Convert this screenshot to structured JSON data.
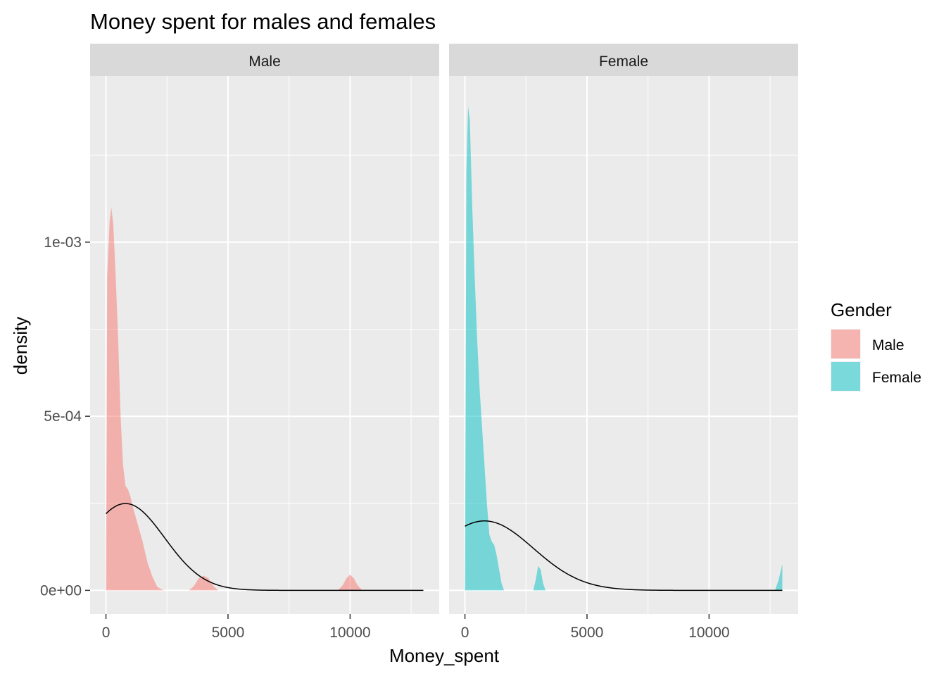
{
  "chart_data": {
    "type": "area",
    "title": "Money spent for males and females",
    "xlabel": "Money_spent",
    "ylabel": "density",
    "xlim": [
      -650,
      13650
    ],
    "ylim": [
      -6.8e-05,
      0.001477
    ],
    "x_ticks": [
      0,
      5000,
      10000
    ],
    "x_tick_labels": [
      "0",
      "5000",
      "10000"
    ],
    "y_ticks": [
      0,
      0.0005,
      0.001
    ],
    "y_tick_labels": [
      "0e+00",
      "5e-04",
      "1e-03"
    ],
    "grid": true,
    "legend": {
      "title": "Gender",
      "position": "right",
      "entries": [
        {
          "label": "Male",
          "color": "#F8766D"
        },
        {
          "label": "Female",
          "color": "#00BFC4"
        }
      ]
    },
    "facets": [
      {
        "label": "Male",
        "fill_color": "#F8766D",
        "density": [
          [
            0,
            0
          ],
          [
            50,
            0.0009
          ],
          [
            150,
            0.00106
          ],
          [
            220,
            0.0011
          ],
          [
            300,
            0.00105
          ],
          [
            400,
            0.0009
          ],
          [
            500,
            0.00072
          ],
          [
            600,
            0.0005
          ],
          [
            700,
            0.00036
          ],
          [
            800,
            0.0003
          ],
          [
            900,
            0.00029
          ],
          [
            1000,
            0.00027
          ],
          [
            1100,
            0.00024
          ],
          [
            1300,
            0.00019
          ],
          [
            1500,
            0.00014
          ],
          [
            1700,
            8e-05
          ],
          [
            1900,
            4e-05
          ],
          [
            2100,
            1e-05
          ],
          [
            2300,
            2e-06
          ],
          [
            2400,
            0
          ],
          [
            3400,
            0
          ],
          [
            3600,
            1.2e-05
          ],
          [
            3800,
            3.5e-05
          ],
          [
            4000,
            4.2e-05
          ],
          [
            4200,
            3.5e-05
          ],
          [
            4400,
            1.2e-05
          ],
          [
            4600,
            0
          ],
          [
            9500,
            0
          ],
          [
            9700,
            1.5e-05
          ],
          [
            9850,
            3.5e-05
          ],
          [
            10000,
            4.5e-05
          ],
          [
            10150,
            3.5e-05
          ],
          [
            10300,
            1.5e-05
          ],
          [
            10500,
            0
          ],
          [
            13000,
            0
          ]
        ],
        "normal_curve": {
          "mean": 800,
          "sd": 1600,
          "x_range": [
            0,
            13000
          ]
        }
      },
      {
        "label": "Female",
        "fill_color": "#00BFC4",
        "density": [
          [
            0,
            0
          ],
          [
            60,
            0.0012
          ],
          [
            130,
            0.00139
          ],
          [
            200,
            0.00135
          ],
          [
            300,
            0.0011
          ],
          [
            400,
            0.0009
          ],
          [
            500,
            0.00072
          ],
          [
            600,
            0.00058
          ],
          [
            700,
            0.00047
          ],
          [
            800,
            0.00036
          ],
          [
            900,
            0.00025
          ],
          [
            1000,
            0.00016
          ],
          [
            1100,
            0.00014
          ],
          [
            1200,
            0.00013
          ],
          [
            1300,
            0.0001
          ],
          [
            1400,
            6e-05
          ],
          [
            1500,
            2e-05
          ],
          [
            1600,
            0
          ],
          [
            2800,
            0
          ],
          [
            2900,
            3e-05
          ],
          [
            3000,
            7e-05
          ],
          [
            3100,
            6e-05
          ],
          [
            3200,
            2e-05
          ],
          [
            3300,
            0
          ],
          [
            12700,
            0
          ],
          [
            12850,
            3e-05
          ],
          [
            13000,
            7.5e-05
          ],
          [
            13000,
            0
          ]
        ],
        "normal_curve": {
          "mean": 800,
          "sd": 2000,
          "x_range": [
            0,
            13000
          ]
        }
      }
    ]
  }
}
